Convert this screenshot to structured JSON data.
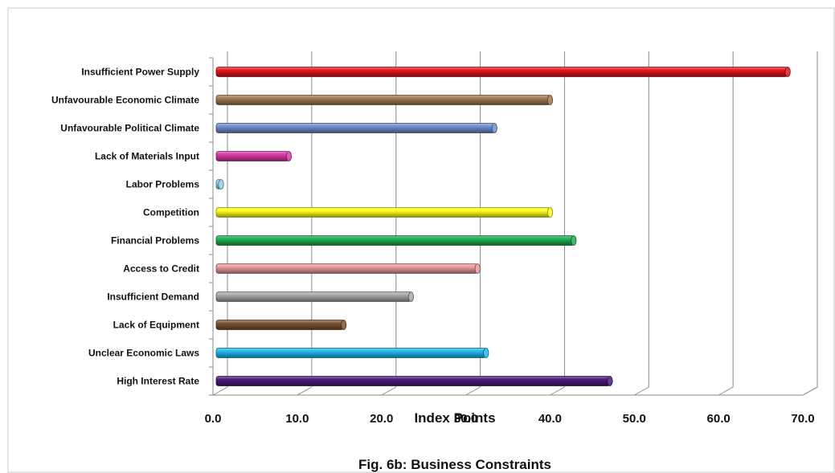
{
  "chart_data": {
    "type": "bar",
    "orientation": "horizontal",
    "categories": [
      "Insufficient Power Supply",
      "Unfavourable Economic Climate",
      "Unfavourable Political Climate",
      "Lack of Materials Input",
      "Labor Problems",
      "Competition",
      "Financial Problems",
      "Access to Credit",
      "Insufficient Demand",
      "Lack of Equipment",
      "Unclear Economic Laws",
      "High Interest Rate"
    ],
    "values": [
      68.2,
      40.0,
      33.4,
      9.0,
      0.6,
      40.0,
      42.8,
      31.4,
      23.5,
      15.5,
      32.4,
      47.1
    ],
    "colors": [
      "#e8141c",
      "#a07850",
      "#6f8ed0",
      "#d63aa8",
      "#8fd3e8",
      "#ffff1a",
      "#1fae4f",
      "#e89a9a",
      "#a8a8a8",
      "#7a5230",
      "#1fb8ee",
      "#4b1a78"
    ],
    "xticks": [
      "0.0",
      "10.0",
      "20.0",
      "30.0",
      "40.0",
      "50.0",
      "60.0",
      "70.0"
    ],
    "xlim": [
      0,
      70
    ],
    "xlabel": "Index Points",
    "caption": "Fig. 6b: Business Constraints",
    "grid": true
  }
}
